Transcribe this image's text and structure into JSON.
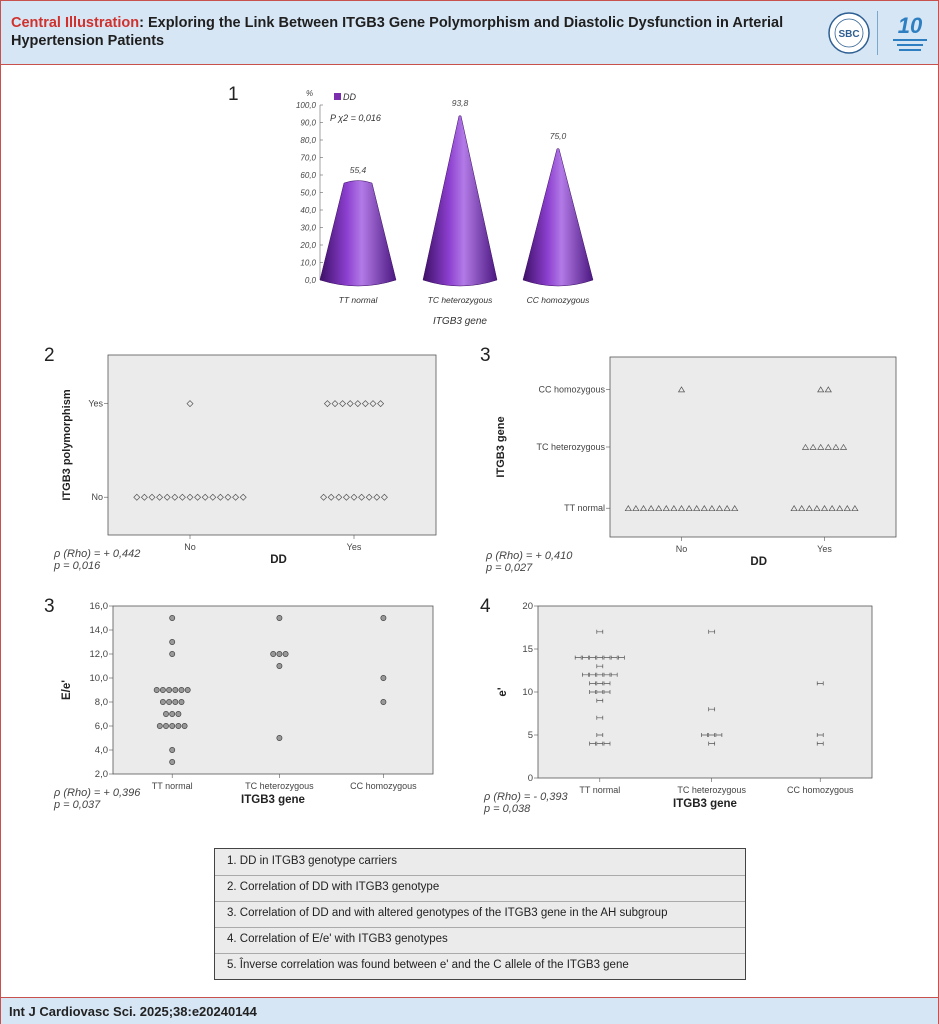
{
  "header": {
    "title_prefix": "Central Illustration",
    "title_rest": ": Exploring the Link Between ITGB3 Gene Polymorphism and Diastolic Dysfunction in Arterial Hypertension Patients",
    "logo_sbc": "SBC",
    "logo_ten": "10"
  },
  "footer": {
    "citation": "Int J Cardiovasc Sci. 2025;38:e20240144"
  },
  "panels": {
    "p1": "1",
    "p2": "2",
    "p3a": "3",
    "p3b": "3",
    "p4": "4"
  },
  "legend": {
    "items": [
      "1. DD in ITGB3 genotype carriers",
      "2. Correlation of DD with ITGB3  genotype",
      "3. Correlation of DD and with altered genotypes of the ITGB3 gene in the AH subgroup",
      "4. Correlation of E/e' with ITGB3 genotypes",
      "5. Înverse correlation was found between e' and the C allele of the ITGB3 gene"
    ]
  },
  "chart_data": [
    {
      "type": "bar",
      "title": "",
      "unit": "%",
      "legend": "DD",
      "annotation": "P χ2 = 0,016",
      "xlabel": "ITGB3 gene",
      "categories": [
        "TT normal",
        "TC heterozygous",
        "CC homozygous"
      ],
      "values": [
        55.4,
        93.8,
        75.0
      ],
      "value_labels": [
        "55,4",
        "93,8",
        "75,0"
      ],
      "ylim": [
        0,
        100
      ],
      "yticks": [
        "0,0",
        "10,0",
        "20,0",
        "30,0",
        "40,0",
        "50,0",
        "60,0",
        "70,0",
        "80,0",
        "90,0",
        "100,0"
      ],
      "color": "#7b2fae"
    },
    {
      "type": "scatter",
      "xlabel": "DD",
      "ylabel": "ITGB3 polymorphism",
      "xcategories": [
        "No",
        "Yes"
      ],
      "ycategories": [
        "No",
        "Yes"
      ],
      "counts": [
        {
          "x": "No",
          "y": "Yes",
          "n": 1
        },
        {
          "x": "No",
          "y": "No",
          "n": 15
        },
        {
          "x": "Yes",
          "y": "Yes",
          "n": 8
        },
        {
          "x": "Yes",
          "y": "No",
          "n": 9
        }
      ],
      "stat_rho": "ρ (Rho) = + 0,442",
      "stat_p": "p = 0,016"
    },
    {
      "type": "scatter",
      "xlabel": "DD",
      "ylabel": "ITGB3 gene",
      "xcategories": [
        "No",
        "Yes"
      ],
      "ycategories": [
        "TT normal",
        "TC heterozygous",
        "CC homozygous"
      ],
      "counts": [
        {
          "x": "No",
          "y": "CC homozygous",
          "n": 1
        },
        {
          "x": "No",
          "y": "TT normal",
          "n": 15
        },
        {
          "x": "Yes",
          "y": "CC homozygous",
          "n": 2
        },
        {
          "x": "Yes",
          "y": "TC heterozygous",
          "n": 6
        },
        {
          "x": "Yes",
          "y": "TT normal",
          "n": 9
        }
      ],
      "stat_rho": "ρ (Rho) = + 0,410",
      "stat_p": "p = 0,027"
    },
    {
      "type": "scatter",
      "xlabel": "ITGB3 gene",
      "ylabel": "E/e'",
      "xcategories": [
        "TT normal",
        "TC heterozygous",
        "CC homozygous"
      ],
      "ylim": [
        2,
        16
      ],
      "yticks": [
        "2,0",
        "4,0",
        "6,0",
        "8,0",
        "10,0",
        "12,0",
        "14,0",
        "16,0"
      ],
      "points": {
        "TT normal": [
          [
            15,
            1
          ],
          [
            13,
            1
          ],
          [
            12,
            1
          ],
          [
            9,
            6
          ],
          [
            8,
            4
          ],
          [
            7,
            3
          ],
          [
            6,
            5
          ],
          [
            4,
            1
          ],
          [
            3,
            1
          ]
        ],
        "TC heterozygous": [
          [
            15,
            1
          ],
          [
            12,
            3
          ],
          [
            11,
            1
          ],
          [
            5,
            1
          ]
        ],
        "CC homozygous": [
          [
            15,
            1
          ],
          [
            10,
            1
          ],
          [
            8,
            1
          ]
        ]
      },
      "stat_rho": "ρ (Rho) = + 0,396",
      "stat_p": "p = 0,037"
    },
    {
      "type": "scatter",
      "xlabel": "ITGB3 gene",
      "ylabel": "e'",
      "xcategories": [
        "TT normal",
        "TC heterozygous",
        "CC homozygous"
      ],
      "ylim": [
        0,
        20
      ],
      "yticks": [
        "0",
        "5",
        "10",
        "15",
        "20"
      ],
      "points": {
        "TT normal": [
          [
            17,
            1
          ],
          [
            14,
            7
          ],
          [
            13,
            1
          ],
          [
            12,
            5
          ],
          [
            11,
            3
          ],
          [
            10,
            3
          ],
          [
            9,
            1
          ],
          [
            7,
            1
          ],
          [
            5,
            1
          ],
          [
            4,
            3
          ]
        ],
        "TC heterozygous": [
          [
            17,
            1
          ],
          [
            8,
            1
          ],
          [
            5,
            3
          ],
          [
            4,
            1
          ]
        ],
        "CC homozygous": [
          [
            11,
            1
          ],
          [
            5,
            1
          ],
          [
            4,
            1
          ]
        ]
      },
      "stat_rho": "ρ (Rho) = - 0,393",
      "stat_p": "p = 0,038"
    }
  ]
}
